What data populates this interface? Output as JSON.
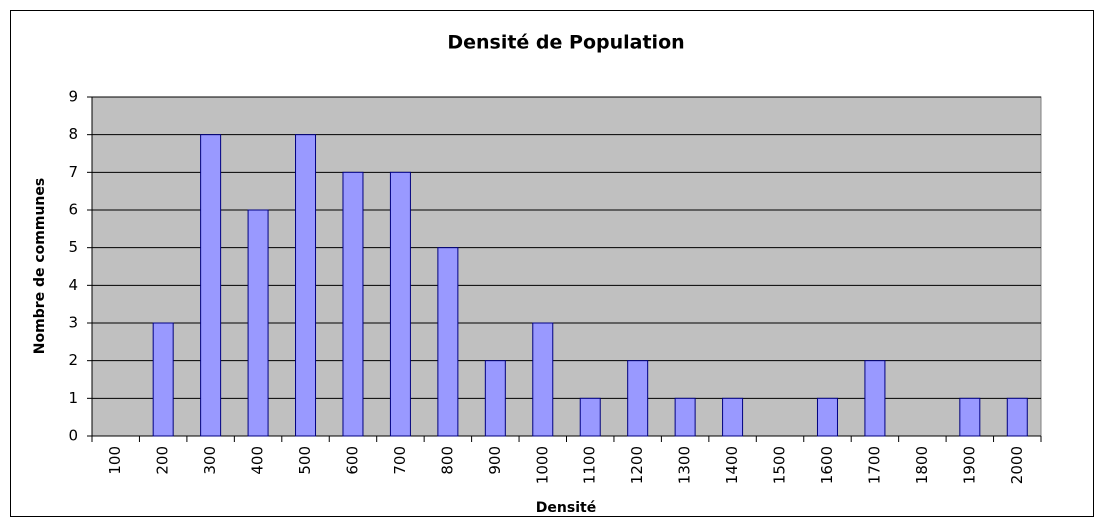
{
  "chart_data": {
    "type": "bar",
    "title": "Densité de Population",
    "x_label": "Densité",
    "y_label": "Nombre de communes",
    "categories": [
      "100",
      "200",
      "300",
      "400",
      "500",
      "600",
      "700",
      "800",
      "900",
      "1000",
      "1100",
      "1200",
      "1300",
      "1400",
      "1500",
      "1600",
      "1700",
      "1800",
      "1900",
      "2000"
    ],
    "values": [
      0,
      3,
      8,
      6,
      8,
      7,
      7,
      5,
      2,
      3,
      1,
      2,
      1,
      1,
      0,
      1,
      2,
      0,
      1,
      1
    ],
    "color": "#9999ff",
    "edge_color": "#000080",
    "plot_background": "#c0c0c0",
    "ylim": [
      0,
      9
    ],
    "yticks": [
      0,
      1,
      2,
      3,
      4,
      5,
      6,
      7,
      8,
      9
    ],
    "grid": true
  }
}
